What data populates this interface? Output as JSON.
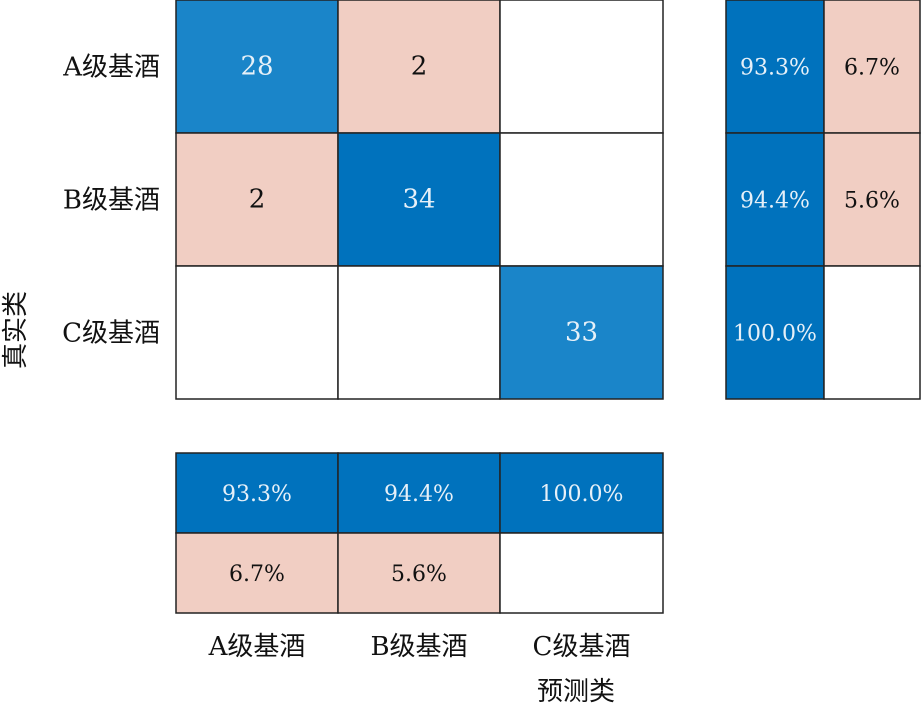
{
  "chart_data": {
    "type": "heatmap",
    "title": "",
    "xlabel": "预测类",
    "ylabel": "真实类",
    "classes": [
      "A级基酒",
      "B级基酒",
      "C级基酒"
    ],
    "matrix": [
      [
        28,
        2,
        null
      ],
      [
        2,
        34,
        null
      ],
      [
        null,
        null,
        33
      ]
    ],
    "row_summary": [
      [
        "93.3%",
        "6.7%"
      ],
      [
        "94.4%",
        "5.6%"
      ],
      [
        "100.0%",
        ""
      ]
    ],
    "column_summary": [
      [
        "93.3%",
        "94.4%",
        "100.0%"
      ],
      [
        "6.7%",
        "5.6%",
        ""
      ]
    ],
    "colors": {
      "correct": "#0072BD",
      "correct_light": "#1A85C9",
      "incorrect": "#F1CEC3",
      "empty": "#FFFFFF",
      "text_on_correct": "#E6F0F8",
      "text_on_incorrect": "#111111"
    }
  }
}
